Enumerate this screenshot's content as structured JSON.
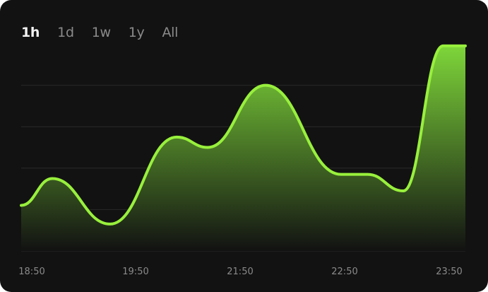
{
  "tabs": [
    {
      "label": "1h",
      "active": true
    },
    {
      "label": "1d",
      "active": false
    },
    {
      "label": "1w",
      "active": false
    },
    {
      "label": "1y",
      "active": false
    },
    {
      "label": "All",
      "active": false
    }
  ],
  "colors": {
    "background": "#121212",
    "line": "#98f03c",
    "fill_top": "#7ed63a",
    "fill_bottom": "#121212",
    "grid": "#2a2a2a",
    "label": "#8a8a8a"
  },
  "chart_data": {
    "type": "area",
    "title": "",
    "xlabel": "",
    "ylabel": "",
    "x_tick_labels": [
      "18:50",
      "19:50",
      "21:50",
      "22:50",
      "23:50"
    ],
    "x": [
      0,
      0.07,
      0.2,
      0.35,
      0.42,
      0.55,
      0.72,
      0.78,
      0.86,
      0.95,
      1.0
    ],
    "values": [
      1.1,
      1.75,
      0.65,
      2.75,
      2.5,
      4.0,
      1.85,
      1.85,
      1.45,
      4.95,
      4.95
    ],
    "ylim": [
      0,
      5
    ],
    "grid": true,
    "legend": "none"
  }
}
